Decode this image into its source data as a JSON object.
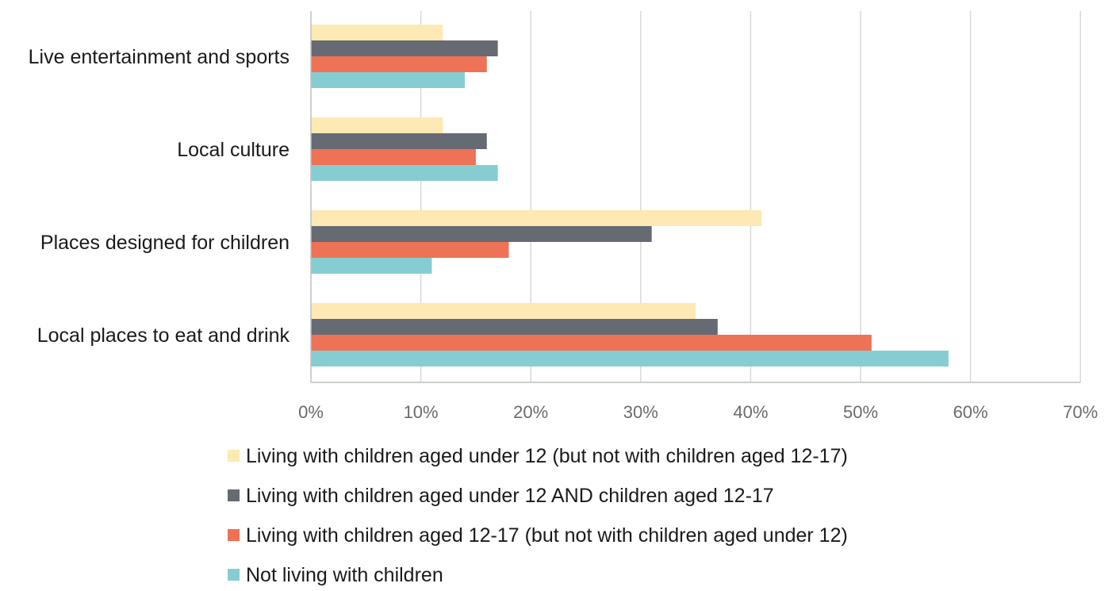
{
  "chart_data": {
    "type": "bar",
    "orientation": "horizontal",
    "title": "",
    "xlabel": "",
    "ylabel": "",
    "categories": [
      "Live entertainment and sports",
      "Local culture",
      "Places designed for children",
      "Local places to eat and drink"
    ],
    "series": [
      {
        "name": "Living with children aged under 12 (but not with children aged 12-17)",
        "color": "#fde9b4",
        "values": [
          12,
          12,
          41,
          35
        ]
      },
      {
        "name": "Living with children aged under 12 AND children aged 12-17",
        "color": "#666a72",
        "values": [
          17,
          16,
          31,
          37
        ]
      },
      {
        "name": "Living with children aged 12-17 (but not with children aged under 12)",
        "color": "#ee7255",
        "values": [
          16,
          15,
          18,
          51
        ]
      },
      {
        "name": "Not living with children",
        "color": "#86cdd1",
        "values": [
          14,
          17,
          11,
          58
        ]
      }
    ],
    "xlim": [
      0,
      70
    ],
    "ticks": [
      0,
      10,
      20,
      30,
      40,
      50,
      60,
      70
    ],
    "tick_labels": [
      "0%",
      "10%",
      "20%",
      "30%",
      "40%",
      "50%",
      "60%",
      "70%"
    ],
    "grid": true,
    "legend_position": "bottom"
  }
}
